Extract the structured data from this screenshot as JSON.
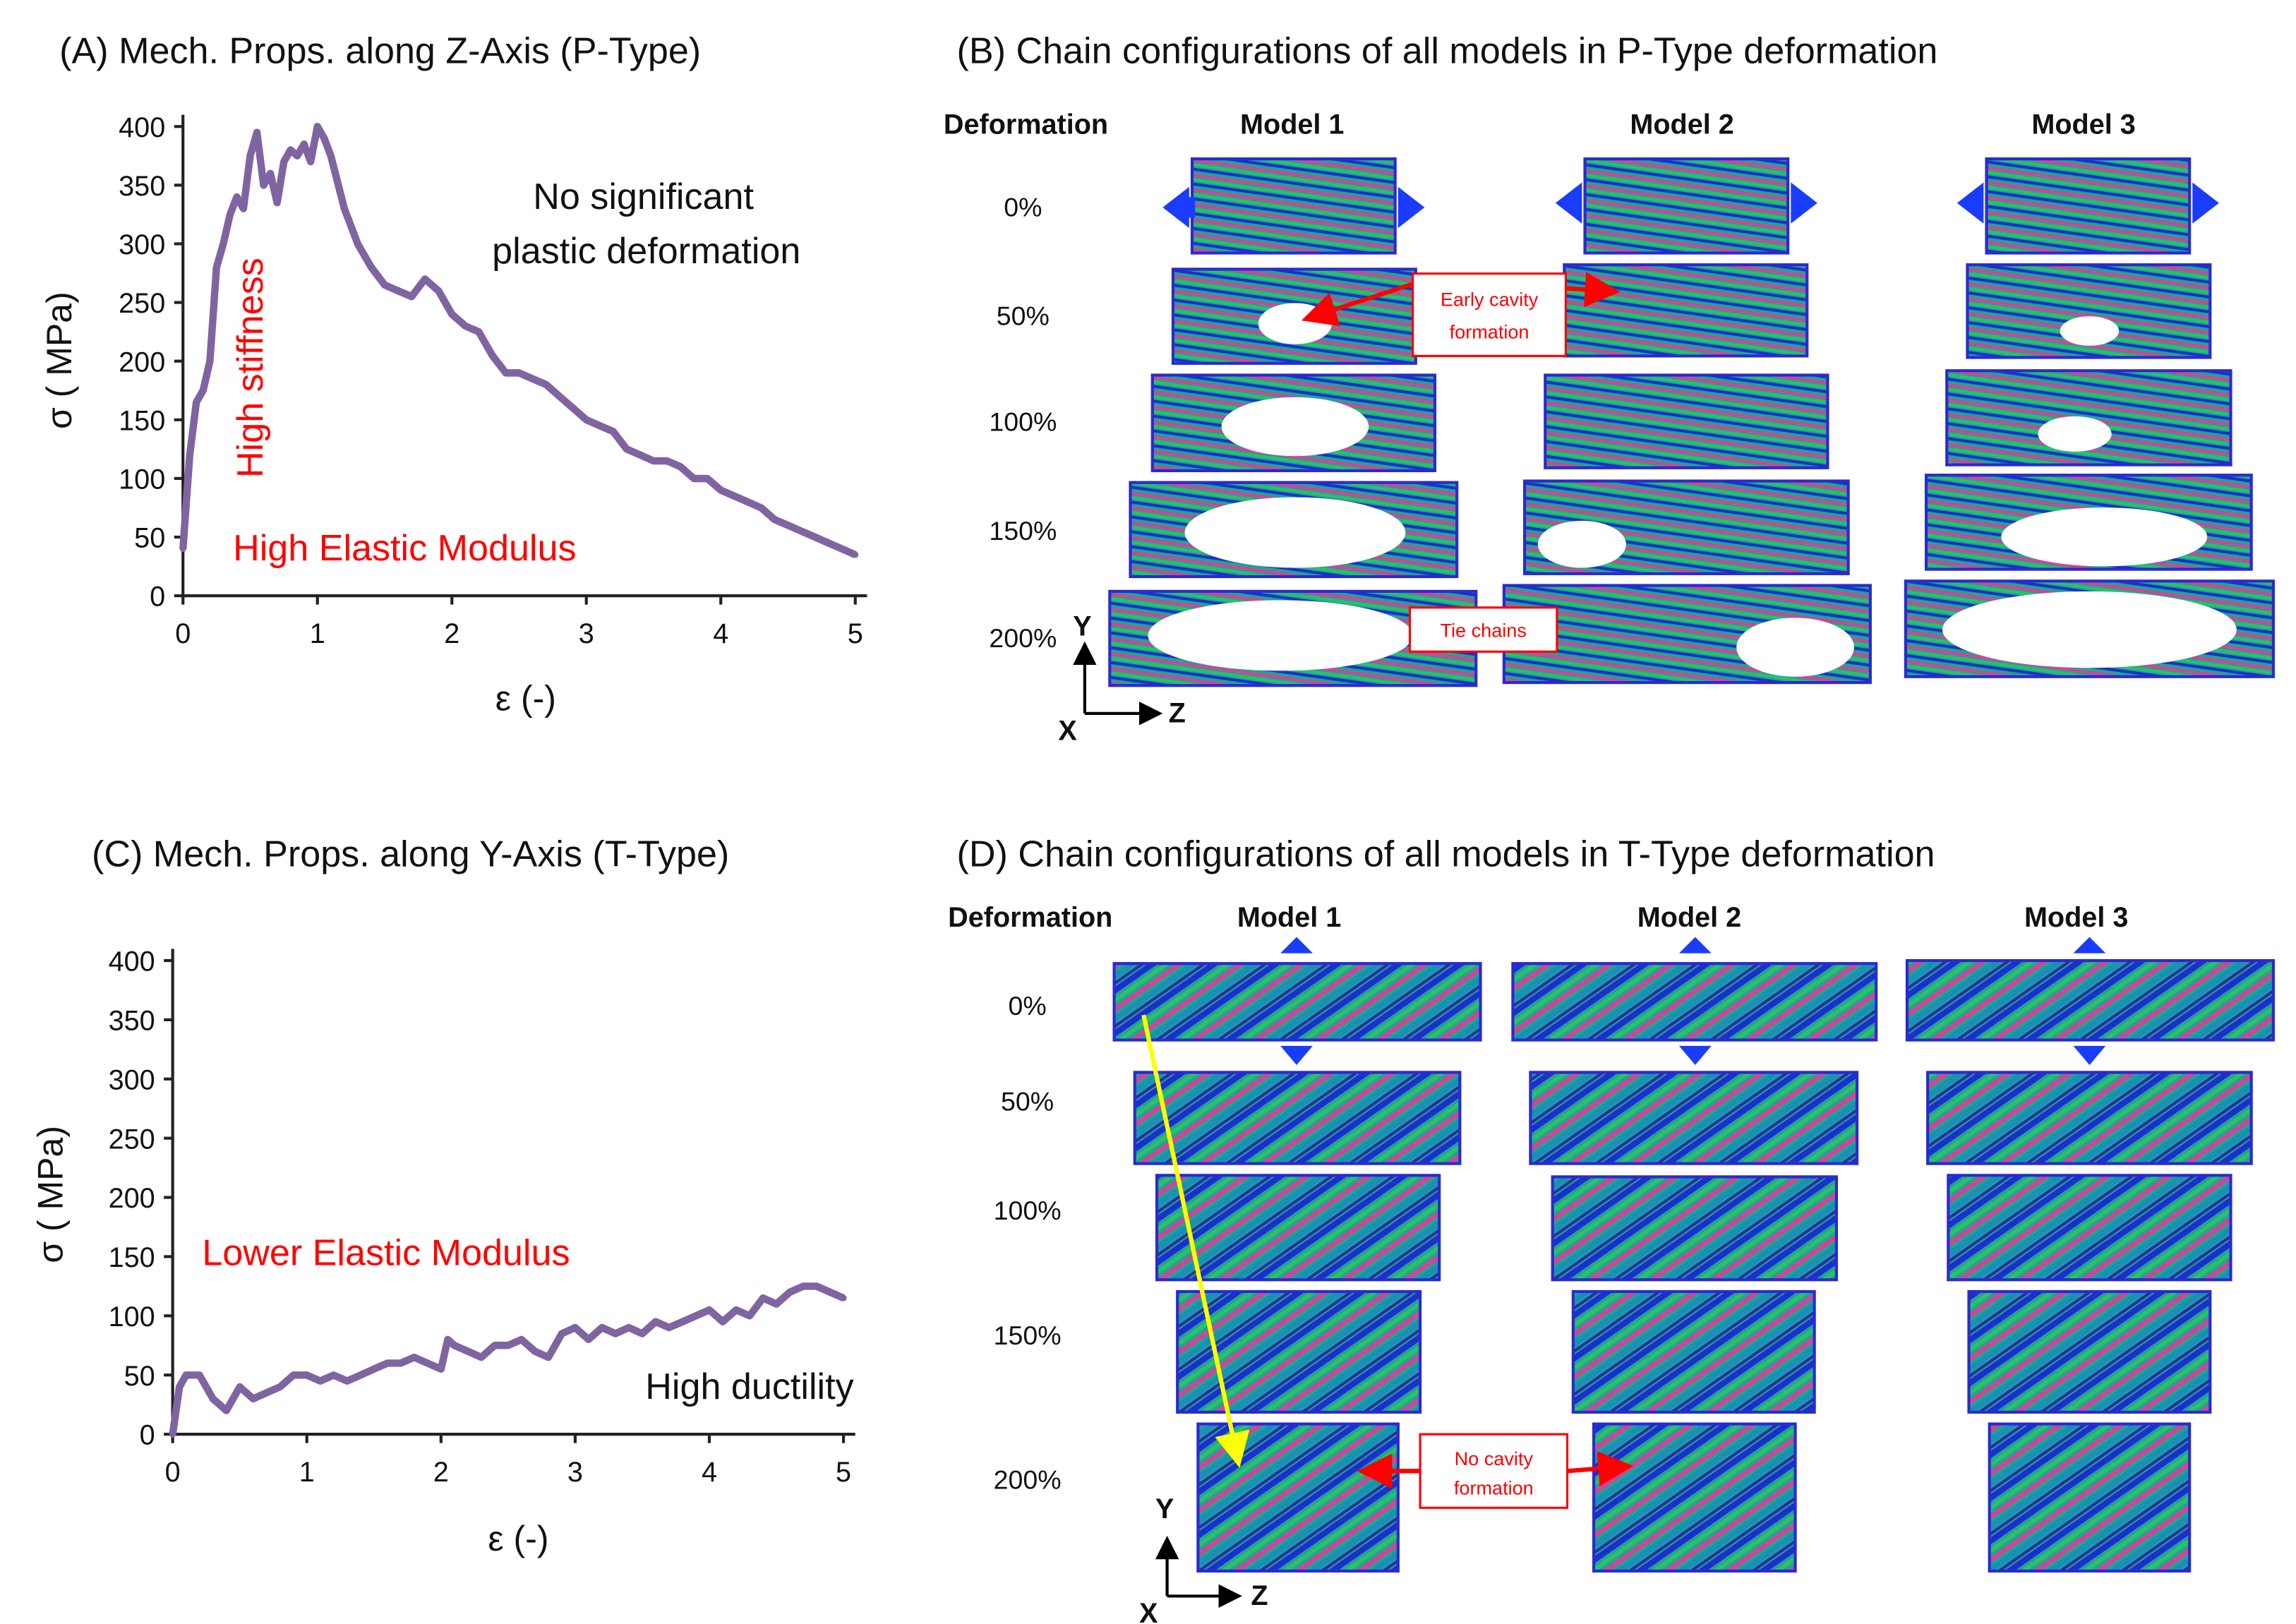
{
  "chart_data": [
    {
      "type": "line",
      "title": "(A) Mech. Props. along Z-Axis (P-Type)",
      "xlabel": "ε (-)",
      "ylabel": "σ ( MPa)",
      "xlim": [
        0,
        5
      ],
      "ylim": [
        0,
        400
      ],
      "xticks": [
        "0",
        "1",
        "2",
        "3",
        "4",
        "5"
      ],
      "yticks": [
        "0",
        "50",
        "100",
        "150",
        "200",
        "250",
        "300",
        "350",
        "400"
      ],
      "series": [
        {
          "name": "P-Type",
          "color": "#8064a2",
          "x": [
            0,
            0.05,
            0.1,
            0.15,
            0.2,
            0.25,
            0.3,
            0.35,
            0.4,
            0.45,
            0.5,
            0.55,
            0.6,
            0.65,
            0.7,
            0.75,
            0.8,
            0.85,
            0.9,
            0.95,
            1.0,
            1.05,
            1.1,
            1.2,
            1.3,
            1.4,
            1.5,
            1.6,
            1.7,
            1.8,
            1.9,
            2.0,
            2.1,
            2.2,
            2.3,
            2.4,
            2.5,
            2.6,
            2.7,
            2.8,
            2.9,
            3.0,
            3.1,
            3.2,
            3.3,
            3.4,
            3.5,
            3.6,
            3.7,
            3.8,
            3.9,
            4.0,
            4.1,
            4.2,
            4.3,
            4.4,
            4.5,
            4.6,
            4.7,
            4.8,
            4.9,
            5.0
          ],
          "y": [
            40,
            120,
            165,
            175,
            200,
            280,
            300,
            325,
            340,
            330,
            375,
            395,
            350,
            360,
            335,
            370,
            380,
            375,
            385,
            370,
            400,
            390,
            375,
            330,
            300,
            280,
            265,
            260,
            255,
            270,
            260,
            240,
            230,
            225,
            205,
            190,
            190,
            185,
            180,
            170,
            160,
            150,
            145,
            140,
            125,
            120,
            115,
            115,
            110,
            100,
            100,
            90,
            85,
            80,
            75,
            65,
            60,
            55,
            50,
            45,
            40,
            35
          ]
        }
      ],
      "annotations": [
        "High stiffness",
        "High Elastic Modulus",
        "No significant",
        "plastic deformation"
      ]
    },
    {
      "type": "line",
      "title": "(C) Mech. Props. along Y-Axis (T-Type)",
      "xlabel": "ε (-)",
      "ylabel": "σ ( MPa)",
      "xlim": [
        0,
        5
      ],
      "ylim": [
        0,
        400
      ],
      "xticks": [
        "0",
        "1",
        "2",
        "3",
        "4",
        "5"
      ],
      "yticks": [
        "0",
        "50",
        "100",
        "150",
        "200",
        "250",
        "300",
        "350",
        "400"
      ],
      "series": [
        {
          "name": "T-Type",
          "color": "#8064a2",
          "x": [
            0,
            0.05,
            0.1,
            0.2,
            0.3,
            0.4,
            0.5,
            0.6,
            0.7,
            0.8,
            0.9,
            1.0,
            1.1,
            1.2,
            1.3,
            1.4,
            1.5,
            1.6,
            1.7,
            1.8,
            1.9,
            2.0,
            2.05,
            2.1,
            2.2,
            2.3,
            2.4,
            2.5,
            2.6,
            2.7,
            2.8,
            2.9,
            3.0,
            3.1,
            3.2,
            3.3,
            3.4,
            3.5,
            3.6,
            3.7,
            3.8,
            3.9,
            4.0,
            4.1,
            4.2,
            4.3,
            4.4,
            4.5,
            4.6,
            4.7,
            4.8,
            4.9,
            5.0
          ],
          "y": [
            0,
            40,
            50,
            50,
            30,
            20,
            40,
            30,
            35,
            40,
            50,
            50,
            45,
            50,
            45,
            50,
            55,
            60,
            60,
            65,
            60,
            55,
            80,
            75,
            70,
            65,
            75,
            75,
            80,
            70,
            65,
            85,
            90,
            80,
            90,
            85,
            90,
            85,
            95,
            90,
            95,
            100,
            105,
            95,
            105,
            100,
            115,
            110,
            120,
            125,
            125,
            120,
            115
          ]
        }
      ],
      "annotations": [
        "Lower Elastic Modulus",
        "High ductility"
      ]
    }
  ],
  "panel_b": {
    "title": "(B) Chain configurations of all models in P-Type deformation",
    "deformation_header": "Deformation",
    "models": [
      "Model 1",
      "Model 2",
      "Model 3"
    ],
    "rows": [
      "0%",
      "50%",
      "100%",
      "150%",
      "200%"
    ],
    "notes": {
      "early_cavity_1": "Early cavity",
      "early_cavity_2": "formation",
      "tie_chains": "Tie chains"
    },
    "axes": {
      "y": "Y",
      "x": "X",
      "z": "Z"
    }
  },
  "panel_d": {
    "title": "(D) Chain configurations of all models in T-Type deformation",
    "deformation_header": "Deformation",
    "models": [
      "Model 1",
      "Model 2",
      "Model 3"
    ],
    "rows": [
      "0%",
      "50%",
      "100%",
      "150%",
      "200%"
    ],
    "notes": {
      "no_cavity_1": "No  cavity",
      "no_cavity_2": "formation"
    },
    "axes": {
      "y": "Y",
      "x": "X",
      "z": "Z"
    }
  },
  "colors": {
    "curve": "#8064a2",
    "annotation": "#ff0000",
    "arrow": "#1a3cff",
    "yellow": "#ffff00"
  }
}
